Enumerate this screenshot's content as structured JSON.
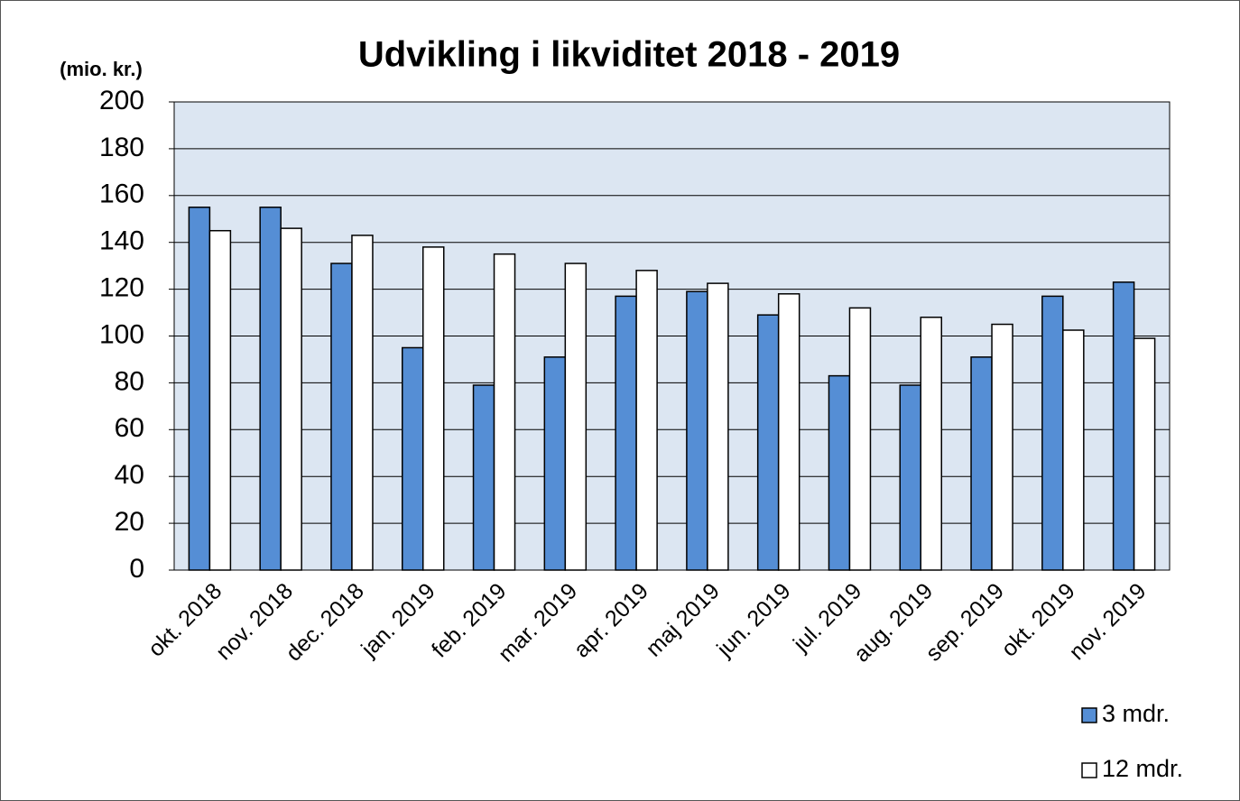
{
  "chart_data": {
    "type": "bar",
    "title": "Udvikling i likviditet 2018 - 2019",
    "y_label": "(mio. kr.)",
    "categories": [
      "okt. 2018",
      "nov. 2018",
      "dec. 2018",
      "jan. 2019",
      "feb. 2019",
      "mar. 2019",
      "apr. 2019",
      "maj 2019",
      "jun. 2019",
      "jul. 2019",
      "aug. 2019",
      "sep. 2019",
      "okt. 2019",
      "nov. 2019"
    ],
    "series": [
      {
        "name": "3 mdr.",
        "color": "#558ed5",
        "values": [
          155,
          155,
          131,
          95,
          79,
          91,
          117,
          119,
          109,
          83,
          79,
          91,
          117,
          123
        ]
      },
      {
        "name": "12 mdr.",
        "color": "#ffffff",
        "values": [
          145,
          146,
          143,
          138,
          135,
          131,
          128,
          122.5,
          118,
          112,
          108,
          105,
          102.5,
          99
        ]
      }
    ],
    "ylim": [
      0,
      200
    ],
    "yticks": [
      0,
      20,
      40,
      60,
      80,
      100,
      120,
      140,
      160,
      180,
      200
    ],
    "grid": true,
    "legend": "bottom-right"
  }
}
